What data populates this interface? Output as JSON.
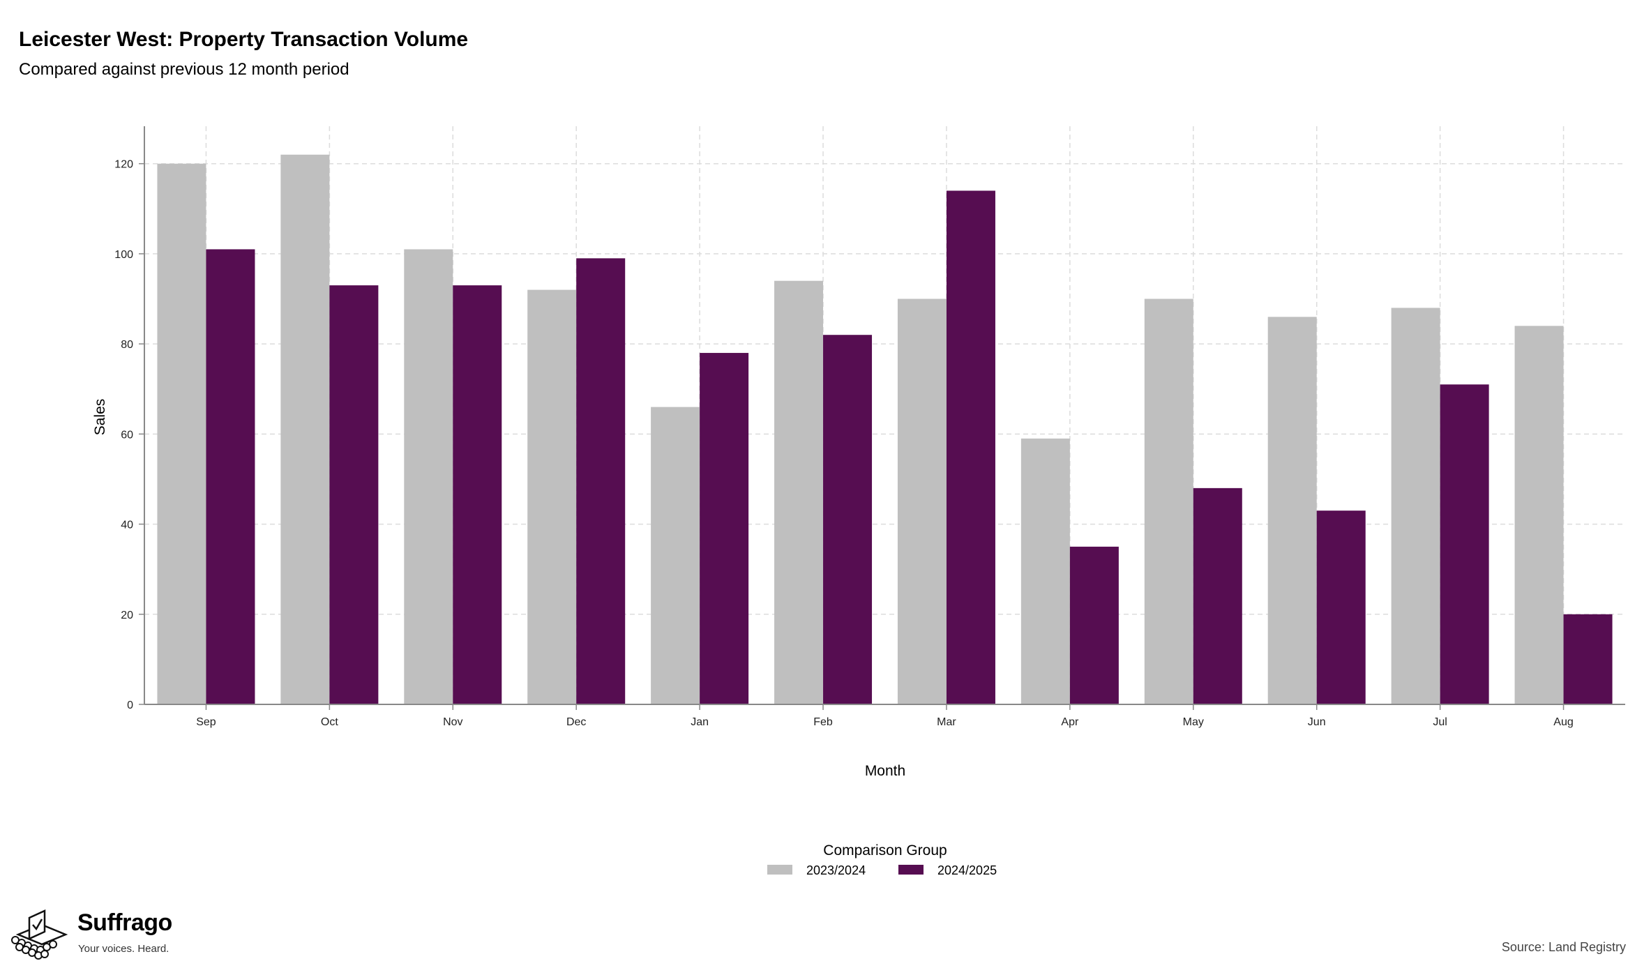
{
  "title": "Leicester West: Property Transaction Volume",
  "subtitle": "Compared against previous 12 month period",
  "source": "Source: Land Registry",
  "brand": {
    "name": "Suffrago",
    "tagline": "Your voices. Heard.",
    "icon": "ballot-box-icon"
  },
  "colors": {
    "series_2023": "#bfbfbf",
    "series_2024": "#560d51",
    "grid": "#dcdcdc",
    "axis": "#888888"
  },
  "chart_data": {
    "type": "bar",
    "xlabel": "Month",
    "ylabel": "Sales",
    "ylim": [
      0,
      128
    ],
    "yticks": [
      0,
      20,
      40,
      60,
      80,
      100,
      120
    ],
    "grid": true,
    "legend_title": "Comparison Group",
    "legend_placement": "bottom",
    "categories": [
      "Sep",
      "Oct",
      "Nov",
      "Dec",
      "Jan",
      "Feb",
      "Mar",
      "Apr",
      "May",
      "Jun",
      "Jul",
      "Aug"
    ],
    "series": [
      {
        "name": "2023/2024",
        "values": [
          120,
          122,
          101,
          92,
          66,
          94,
          90,
          59,
          90,
          86,
          88,
          84
        ]
      },
      {
        "name": "2024/2025",
        "values": [
          101,
          93,
          93,
          99,
          78,
          82,
          114,
          35,
          48,
          43,
          71,
          20
        ]
      }
    ]
  }
}
